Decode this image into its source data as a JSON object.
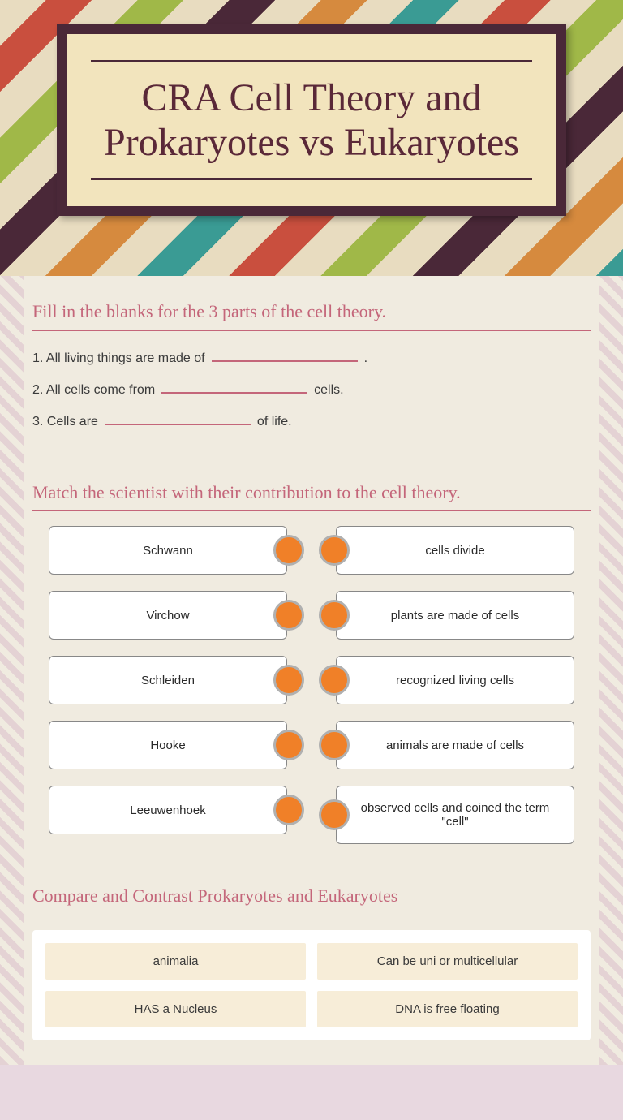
{
  "colors": {
    "accent": "#c4667a",
    "title_bg": "#f2e4bd",
    "title_border": "#4a2838",
    "dot": "#f08028",
    "content_bg": "#f0ebe0",
    "compare_item_bg": "#f7edd8"
  },
  "title": "CRA Cell Theory and Prokaryotes vs Eukaryotes",
  "section1": {
    "heading": "Fill in the blanks for the 3 parts of the cell theory.",
    "items": [
      {
        "pre": "1. All living things are made of",
        "post": "."
      },
      {
        "pre": "2. All cells come from",
        "post": "cells."
      },
      {
        "pre": "3. Cells are",
        "post": "of life."
      }
    ]
  },
  "section2": {
    "heading": "Match the scientist with their contribution to the cell theory.",
    "left": [
      "Schwann",
      "Virchow",
      "Schleiden",
      "Hooke",
      "Leeuwenhoek"
    ],
    "right": [
      "cells divide",
      "plants are made of cells",
      "recognized living cells",
      "animals are made of cells",
      "observed cells and coined the term \"cell\""
    ]
  },
  "section3": {
    "heading": "Compare and Contrast Prokaryotes and Eukaryotes",
    "items": [
      "animalia",
      "Can be uni or multicellular",
      "HAS a Nucleus",
      "DNA is free floating"
    ]
  }
}
